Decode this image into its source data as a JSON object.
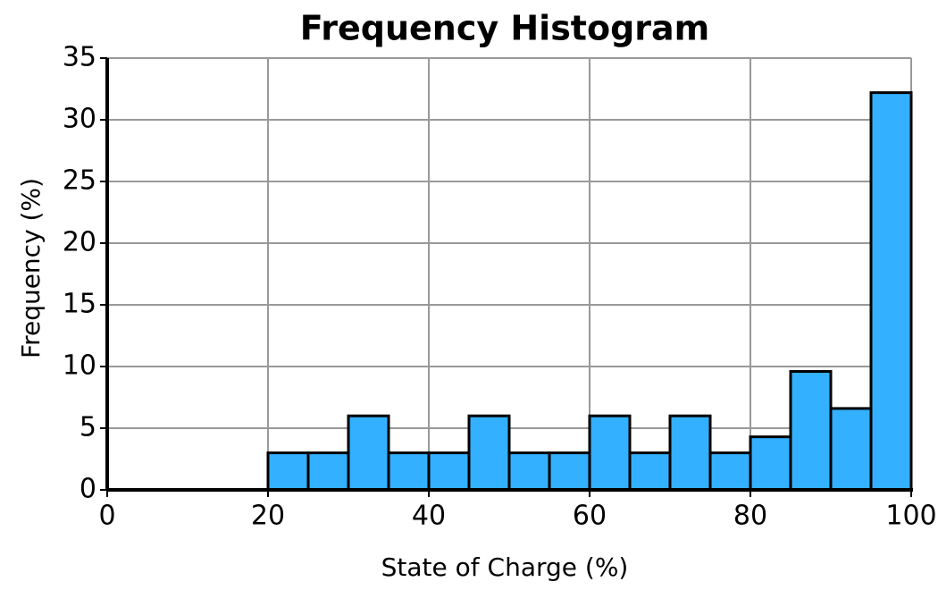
{
  "chart_data": {
    "type": "histogram",
    "title": "Frequency Histogram",
    "x_label": "State of Charge (%)",
    "y_label": "Frequency (%)",
    "bins": [
      20,
      25,
      30,
      35,
      40,
      45,
      50,
      55,
      60,
      65,
      70,
      75,
      80,
      85,
      90,
      95,
      100
    ],
    "values": [
      3,
      3,
      6,
      3,
      3,
      6,
      3,
      3,
      6,
      3,
      6,
      3,
      4.3,
      9.6,
      6.6,
      32.2
    ],
    "color": "#33b0ff",
    "xlim": [
      0,
      100
    ],
    "xticks": [
      0,
      20,
      40,
      60,
      80,
      100
    ],
    "ylim": [
      0,
      35
    ],
    "yticks": [
      0,
      5,
      10,
      15,
      20,
      25,
      30,
      35
    ],
    "grid": true
  }
}
